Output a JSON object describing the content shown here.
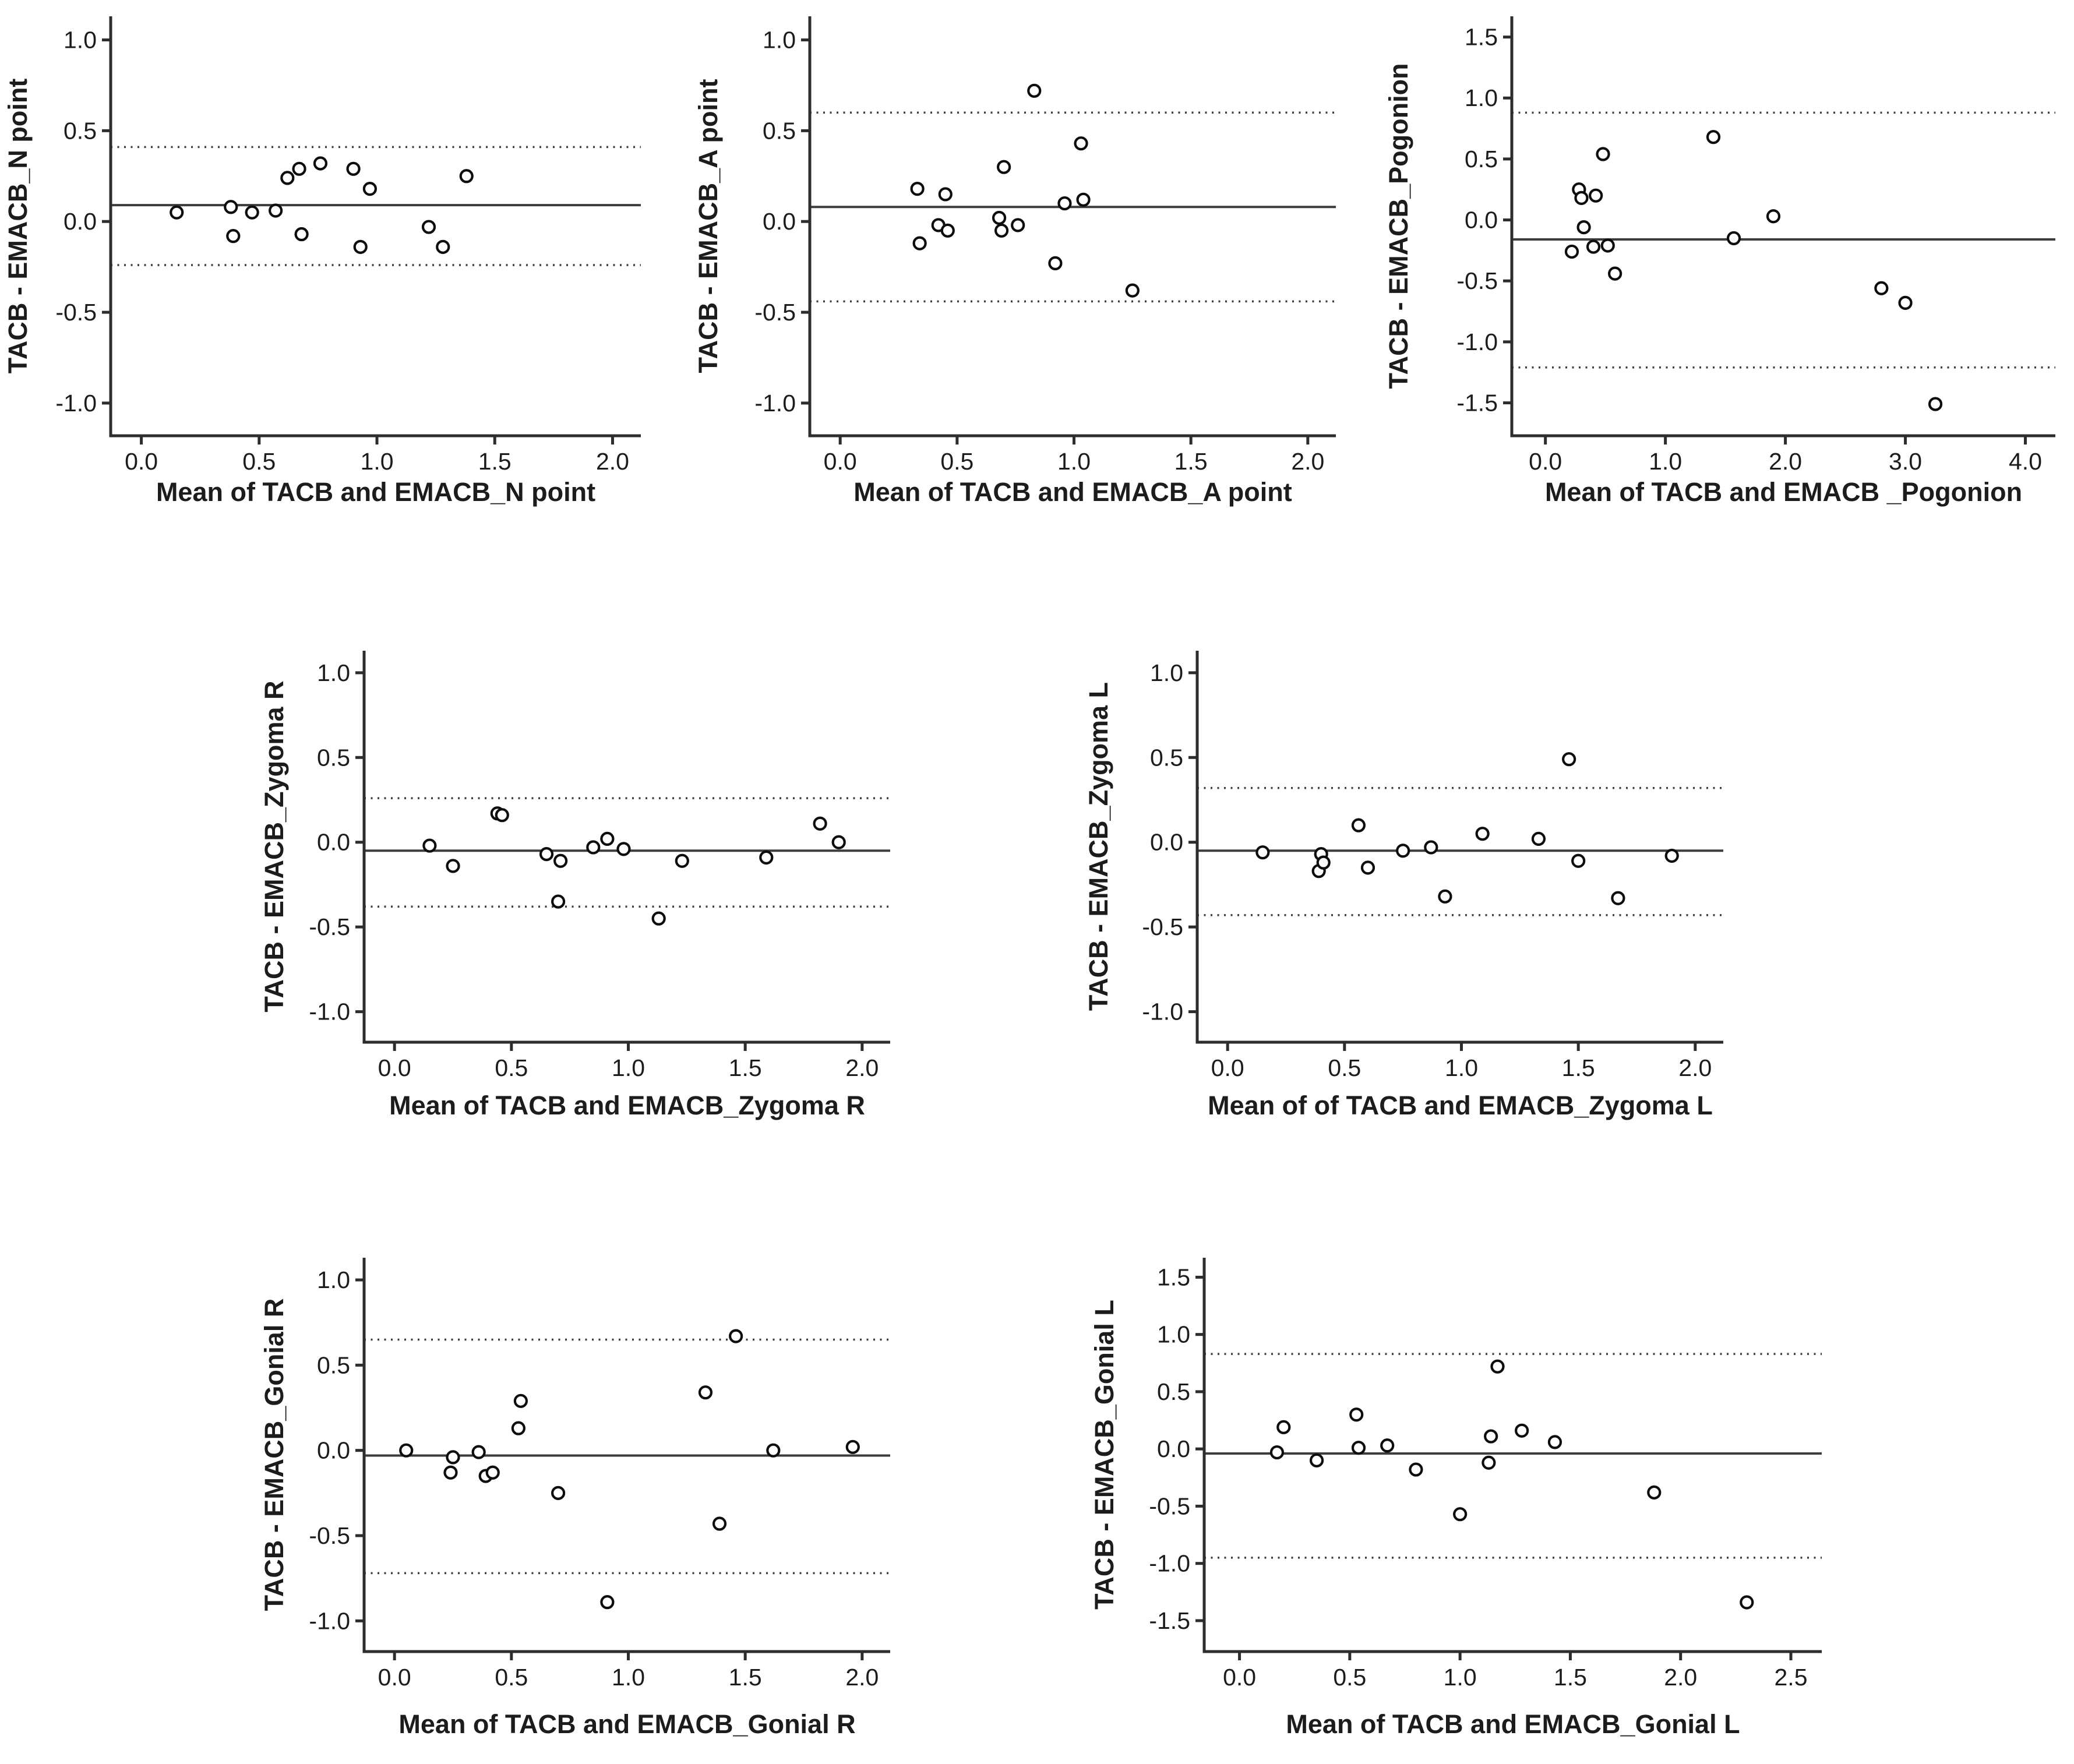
{
  "figure": {
    "background": "#ffffff",
    "text_color": "#1c1c1c",
    "axis_color": "#2d2d2d",
    "line_color": "#3d3d3d",
    "marker": "open-circle",
    "marker_color": "#0d0d0d",
    "grid": false,
    "legend": null,
    "title": ""
  },
  "chart_data": [
    {
      "id": "n-point",
      "type": "scatter",
      "title": "",
      "ylabel": "TACB - EMACB_N point",
      "xlabel": "Mean of TACB and EMACB_N point",
      "xlim": [
        -0.13,
        2.12
      ],
      "ylim": [
        -1.18,
        1.13
      ],
      "xticks": [
        0.0,
        0.5,
        1.0,
        1.5,
        2.0
      ],
      "yticks": [
        -1.0,
        -0.5,
        0.0,
        0.5,
        1.0
      ],
      "mean_line": 0.09,
      "upper_loa": 0.41,
      "lower_loa": -0.24,
      "points": [
        [
          0.15,
          0.05
        ],
        [
          0.38,
          0.08
        ],
        [
          0.39,
          -0.08
        ],
        [
          0.47,
          0.05
        ],
        [
          0.57,
          0.06
        ],
        [
          0.62,
          0.24
        ],
        [
          0.67,
          0.29
        ],
        [
          0.68,
          -0.07
        ],
        [
          0.76,
          0.32
        ],
        [
          0.9,
          0.29
        ],
        [
          0.93,
          -0.14
        ],
        [
          0.97,
          0.18
        ],
        [
          1.22,
          -0.03
        ],
        [
          1.28,
          -0.14
        ],
        [
          1.38,
          0.25
        ]
      ]
    },
    {
      "id": "a-point",
      "type": "scatter",
      "title": "",
      "ylabel": "TACB - EMACB_A point",
      "xlabel": "Mean of TACB and EMACB_A point",
      "xlim": [
        -0.13,
        2.12
      ],
      "ylim": [
        -1.18,
        1.13
      ],
      "xticks": [
        0.0,
        0.5,
        1.0,
        1.5,
        2.0
      ],
      "yticks": [
        -1.0,
        -0.5,
        0.0,
        0.5,
        1.0
      ],
      "mean_line": 0.08,
      "upper_loa": 0.6,
      "lower_loa": -0.44,
      "points": [
        [
          0.33,
          0.18
        ],
        [
          0.34,
          -0.12
        ],
        [
          0.42,
          -0.02
        ],
        [
          0.45,
          0.15
        ],
        [
          0.46,
          -0.05
        ],
        [
          0.68,
          0.02
        ],
        [
          0.69,
          -0.05
        ],
        [
          0.7,
          0.3
        ],
        [
          0.76,
          -0.02
        ],
        [
          0.83,
          0.72
        ],
        [
          0.92,
          -0.23
        ],
        [
          0.96,
          0.1
        ],
        [
          1.03,
          0.43
        ],
        [
          1.04,
          0.12
        ],
        [
          1.25,
          -0.38
        ]
      ]
    },
    {
      "id": "pogonion",
      "type": "scatter",
      "title": "",
      "ylabel": "TACB - EMACB_Pogonion",
      "xlabel": "Mean of TACB and EMACB _Pogonion",
      "xlim": [
        -0.28,
        4.25
      ],
      "ylim": [
        -1.77,
        1.67
      ],
      "xticks": [
        0.0,
        1.0,
        2.0,
        3.0,
        4.0
      ],
      "yticks": [
        -1.5,
        -1.0,
        -0.5,
        0.0,
        0.5,
        1.0,
        1.5
      ],
      "mean_line": -0.16,
      "upper_loa": 0.88,
      "lower_loa": -1.21,
      "points": [
        [
          0.22,
          -0.26
        ],
        [
          0.28,
          0.25
        ],
        [
          0.3,
          0.18
        ],
        [
          0.32,
          -0.06
        ],
        [
          0.4,
          -0.22
        ],
        [
          0.42,
          0.2
        ],
        [
          0.48,
          0.54
        ],
        [
          0.52,
          -0.21
        ],
        [
          0.58,
          -0.44
        ],
        [
          1.4,
          0.68
        ],
        [
          1.57,
          -0.15
        ],
        [
          1.9,
          0.03
        ],
        [
          2.8,
          -0.56
        ],
        [
          3.0,
          -0.68
        ],
        [
          3.25,
          -1.51
        ]
      ]
    },
    {
      "id": "zygoma-r",
      "type": "scatter",
      "title": "",
      "ylabel": "TACB - EMACB_Zygoma R",
      "xlabel": "Mean of TACB and EMACB_Zygoma R",
      "xlim": [
        -0.13,
        2.12
      ],
      "ylim": [
        -1.18,
        1.13
      ],
      "xticks": [
        0.0,
        0.5,
        1.0,
        1.5,
        2.0
      ],
      "yticks": [
        -1.0,
        -0.5,
        0.0,
        0.5,
        1.0
      ],
      "mean_line": -0.05,
      "upper_loa": 0.26,
      "lower_loa": -0.38,
      "points": [
        [
          0.15,
          -0.02
        ],
        [
          0.25,
          -0.14
        ],
        [
          0.44,
          0.17
        ],
        [
          0.46,
          0.16
        ],
        [
          0.65,
          -0.07
        ],
        [
          0.7,
          -0.35
        ],
        [
          0.71,
          -0.11
        ],
        [
          0.85,
          -0.03
        ],
        [
          0.91,
          0.02
        ],
        [
          0.98,
          -0.04
        ],
        [
          1.13,
          -0.45
        ],
        [
          1.23,
          -0.11
        ],
        [
          1.59,
          -0.09
        ],
        [
          1.82,
          0.11
        ],
        [
          1.9,
          0.0
        ]
      ]
    },
    {
      "id": "zygoma-l",
      "type": "scatter",
      "title": "",
      "ylabel": "TACB - EMACB_Zygoma L",
      "xlabel": "Mean of of TACB and EMACB_Zygoma L",
      "xlim": [
        -0.13,
        2.12
      ],
      "ylim": [
        -1.18,
        1.13
      ],
      "xticks": [
        0.0,
        0.5,
        1.0,
        1.5,
        2.0
      ],
      "yticks": [
        -1.0,
        -0.5,
        0.0,
        0.5,
        1.0
      ],
      "mean_line": -0.05,
      "upper_loa": 0.32,
      "lower_loa": -0.43,
      "points": [
        [
          0.15,
          -0.06
        ],
        [
          0.39,
          -0.17
        ],
        [
          0.4,
          -0.07
        ],
        [
          0.41,
          -0.12
        ],
        [
          0.56,
          0.1
        ],
        [
          0.6,
          -0.15
        ],
        [
          0.75,
          -0.05
        ],
        [
          0.87,
          -0.03
        ],
        [
          0.93,
          -0.32
        ],
        [
          1.09,
          0.05
        ],
        [
          1.33,
          0.02
        ],
        [
          1.46,
          0.49
        ],
        [
          1.5,
          -0.11
        ],
        [
          1.67,
          -0.33
        ],
        [
          1.9,
          -0.08
        ]
      ]
    },
    {
      "id": "gonial-r",
      "type": "scatter",
      "title": "",
      "ylabel": "TACB - EMACB_Gonial R",
      "xlabel": "Mean of TACB and EMACB_Gonial R",
      "xlim": [
        -0.13,
        2.12
      ],
      "ylim": [
        -1.18,
        1.13
      ],
      "xticks": [
        0.0,
        0.5,
        1.0,
        1.5,
        2.0
      ],
      "yticks": [
        -1.0,
        -0.5,
        0.0,
        0.5,
        1.0
      ],
      "mean_line": -0.03,
      "upper_loa": 0.65,
      "lower_loa": -0.72,
      "points": [
        [
          0.05,
          0.0
        ],
        [
          0.24,
          -0.13
        ],
        [
          0.25,
          -0.04
        ],
        [
          0.36,
          -0.01
        ],
        [
          0.39,
          -0.15
        ],
        [
          0.42,
          -0.13
        ],
        [
          0.53,
          0.13
        ],
        [
          0.54,
          0.29
        ],
        [
          0.7,
          -0.25
        ],
        [
          0.91,
          -0.89
        ],
        [
          1.33,
          0.34
        ],
        [
          1.39,
          -0.43
        ],
        [
          1.46,
          0.67
        ],
        [
          1.62,
          0.0
        ],
        [
          1.96,
          0.02
        ]
      ]
    },
    {
      "id": "gonial-l",
      "type": "scatter",
      "title": "",
      "ylabel": "TACB - EMACB_Gonial L",
      "xlabel": "Mean of TACB and EMACB_Gonial L",
      "xlim": [
        -0.16,
        2.64
      ],
      "ylim": [
        -1.77,
        1.67
      ],
      "xticks": [
        0.0,
        0.5,
        1.0,
        1.5,
        2.0,
        2.5
      ],
      "yticks": [
        -1.5,
        -1.0,
        -0.5,
        0.0,
        0.5,
        1.0,
        1.5
      ],
      "mean_line": -0.04,
      "upper_loa": 0.83,
      "lower_loa": -0.95,
      "points": [
        [
          0.17,
          -0.03
        ],
        [
          0.2,
          0.19
        ],
        [
          0.35,
          -0.1
        ],
        [
          0.53,
          0.3
        ],
        [
          0.54,
          0.01
        ],
        [
          0.67,
          0.03
        ],
        [
          0.8,
          -0.18
        ],
        [
          1.0,
          -0.57
        ],
        [
          1.13,
          -0.12
        ],
        [
          1.14,
          0.11
        ],
        [
          1.17,
          0.72
        ],
        [
          1.28,
          0.16
        ],
        [
          1.43,
          0.06
        ],
        [
          1.88,
          -0.38
        ],
        [
          2.3,
          -1.34
        ]
      ]
    }
  ]
}
